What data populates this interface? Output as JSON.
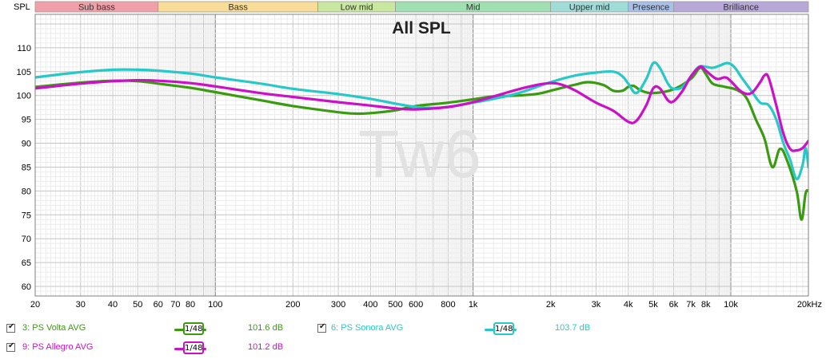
{
  "chart_data": {
    "type": "line",
    "title": "All SPL",
    "ylabel": "SPL",
    "xlabel": "",
    "x_scale": "log",
    "xlim": [
      20,
      20000
    ],
    "ylim": [
      58,
      117
    ],
    "grid": true,
    "watermark": "Tw6",
    "x_ticks": [
      {
        "v": 20,
        "l": "20"
      },
      {
        "v": 30,
        "l": "30"
      },
      {
        "v": 40,
        "l": "40"
      },
      {
        "v": 50,
        "l": "50"
      },
      {
        "v": 60,
        "l": "60"
      },
      {
        "v": 70,
        "l": "70"
      },
      {
        "v": 80,
        "l": "80"
      },
      {
        "v": 100,
        "l": "100"
      },
      {
        "v": 200,
        "l": "200"
      },
      {
        "v": 300,
        "l": "300"
      },
      {
        "v": 400,
        "l": "400"
      },
      {
        "v": 500,
        "l": "500"
      },
      {
        "v": 600,
        "l": "600"
      },
      {
        "v": 800,
        "l": "800"
      },
      {
        "v": 1000,
        "l": "1k"
      },
      {
        "v": 2000,
        "l": "2k"
      },
      {
        "v": 3000,
        "l": "3k"
      },
      {
        "v": 4000,
        "l": "4k"
      },
      {
        "v": 5000,
        "l": "5k"
      },
      {
        "v": 6000,
        "l": "6k"
      },
      {
        "v": 7000,
        "l": "7k"
      },
      {
        "v": 8000,
        "l": "8k"
      },
      {
        "v": 10000,
        "l": "10k"
      },
      {
        "v": 20000,
        "l": "20kHz"
      }
    ],
    "y_ticks": [
      60,
      65,
      70,
      75,
      80,
      85,
      90,
      95,
      100,
      105,
      110
    ],
    "bands": [
      {
        "label": "Sub bass",
        "from": 20,
        "to": 60,
        "color": "#f0a0a8"
      },
      {
        "label": "Bass",
        "from": 60,
        "to": 250,
        "color": "#f8dc98"
      },
      {
        "label": "Low mid",
        "from": 250,
        "to": 500,
        "color": "#c8e8a0"
      },
      {
        "label": "Mid",
        "from": 500,
        "to": 2000,
        "color": "#a0e0b0"
      },
      {
        "label": "Upper mid",
        "from": 2000,
        "to": 4000,
        "color": "#a0dcd8"
      },
      {
        "label": "Presence",
        "from": 4000,
        "to": 6000,
        "color": "#a8c0e8"
      },
      {
        "label": "Brilliance",
        "from": 6000,
        "to": 20000,
        "color": "#b8a8d8"
      }
    ],
    "series": [
      {
        "name": "3: PS Volta AVG",
        "color": "#3a9a10",
        "db": "101.6 dB",
        "points": [
          [
            20,
            101.8
          ],
          [
            30,
            102.7
          ],
          [
            40,
            103.1
          ],
          [
            50,
            103.0
          ],
          [
            60,
            102.5
          ],
          [
            80,
            101.6
          ],
          [
            100,
            100.7
          ],
          [
            150,
            99.0
          ],
          [
            200,
            97.8
          ],
          [
            300,
            96.5
          ],
          [
            350,
            96.2
          ],
          [
            400,
            96.3
          ],
          [
            500,
            96.9
          ],
          [
            600,
            97.8
          ],
          [
            800,
            98.5
          ],
          [
            1000,
            99.2
          ],
          [
            1200,
            99.8
          ],
          [
            1500,
            100.0
          ],
          [
            1800,
            100.4
          ],
          [
            2000,
            101.0
          ],
          [
            2500,
            102.3
          ],
          [
            2800,
            102.8
          ],
          [
            3200,
            102.2
          ],
          [
            3500,
            101.0
          ],
          [
            3800,
            101.0
          ],
          [
            4000,
            101.8
          ],
          [
            4200,
            102.0
          ],
          [
            4500,
            101.0
          ],
          [
            5000,
            100.5
          ],
          [
            6000,
            101.3
          ],
          [
            7000,
            103.5
          ],
          [
            7600,
            105.8
          ],
          [
            8000,
            104.5
          ],
          [
            8500,
            102.5
          ],
          [
            9500,
            101.8
          ],
          [
            10500,
            101.2
          ],
          [
            11500,
            99.5
          ],
          [
            12500,
            95.0
          ],
          [
            13500,
            91.0
          ],
          [
            14500,
            85.0
          ],
          [
            15500,
            88.8
          ],
          [
            16500,
            86.5
          ],
          [
            18000,
            80.0
          ],
          [
            18800,
            74.0
          ],
          [
            19500,
            79.5
          ],
          [
            20000,
            80.0
          ]
        ]
      },
      {
        "name": "6: PS Sonora AVG",
        "color": "#28c8c8",
        "db": "103.7 dB",
        "points": [
          [
            20,
            103.8
          ],
          [
            30,
            104.9
          ],
          [
            40,
            105.4
          ],
          [
            50,
            105.4
          ],
          [
            60,
            105.2
          ],
          [
            80,
            104.6
          ],
          [
            100,
            103.8
          ],
          [
            150,
            102.5
          ],
          [
            200,
            101.4
          ],
          [
            300,
            100.3
          ],
          [
            400,
            99.3
          ],
          [
            500,
            98.3
          ],
          [
            600,
            97.6
          ],
          [
            700,
            97.4
          ],
          [
            800,
            97.6
          ],
          [
            1000,
            98.5
          ],
          [
            1200,
            99.3
          ],
          [
            1500,
            100.5
          ],
          [
            2000,
            102.8
          ],
          [
            2500,
            104.2
          ],
          [
            3000,
            104.8
          ],
          [
            3500,
            105.0
          ],
          [
            3800,
            104.0
          ],
          [
            4000,
            102.5
          ],
          [
            4300,
            100.5
          ],
          [
            4700,
            103.5
          ],
          [
            5000,
            106.8
          ],
          [
            5300,
            105.8
          ],
          [
            5700,
            102.5
          ],
          [
            6000,
            101.4
          ],
          [
            6500,
            101.8
          ],
          [
            7000,
            104.0
          ],
          [
            7500,
            106.0
          ],
          [
            8000,
            106.0
          ],
          [
            8500,
            105.8
          ],
          [
            9000,
            106.2
          ],
          [
            9700,
            106.8
          ],
          [
            10300,
            106.0
          ],
          [
            11000,
            103.8
          ],
          [
            12000,
            101.0
          ],
          [
            13000,
            98.5
          ],
          [
            14000,
            98.0
          ],
          [
            15000,
            95.0
          ],
          [
            16000,
            90.0
          ],
          [
            17000,
            86.5
          ],
          [
            18000,
            82.5
          ],
          [
            19000,
            85.5
          ],
          [
            19500,
            89.0
          ],
          [
            20000,
            85.0
          ]
        ]
      },
      {
        "name": "9: PS Allegro AVG",
        "color": "#cc10c8",
        "db": "101.2 dB",
        "points": [
          [
            20,
            101.5
          ],
          [
            30,
            102.5
          ],
          [
            40,
            103.0
          ],
          [
            50,
            103.2
          ],
          [
            60,
            103.1
          ],
          [
            80,
            102.6
          ],
          [
            100,
            101.9
          ],
          [
            150,
            100.5
          ],
          [
            200,
            99.7
          ],
          [
            300,
            98.6
          ],
          [
            400,
            97.9
          ],
          [
            500,
            97.3
          ],
          [
            600,
            97.1
          ],
          [
            800,
            97.6
          ],
          [
            1000,
            98.6
          ],
          [
            1200,
            99.8
          ],
          [
            1500,
            101.3
          ],
          [
            1800,
            102.3
          ],
          [
            2000,
            102.6
          ],
          [
            2200,
            102.3
          ],
          [
            2500,
            101.0
          ],
          [
            3000,
            98.5
          ],
          [
            3500,
            96.8
          ],
          [
            4000,
            94.5
          ],
          [
            4300,
            94.7
          ],
          [
            4700,
            98.0
          ],
          [
            5000,
            101.5
          ],
          [
            5300,
            101.5
          ],
          [
            5700,
            99.0
          ],
          [
            6000,
            98.8
          ],
          [
            6500,
            101.0
          ],
          [
            7000,
            104.0
          ],
          [
            7600,
            106.0
          ],
          [
            8000,
            105.2
          ],
          [
            8800,
            103.5
          ],
          [
            9500,
            103.8
          ],
          [
            10000,
            103.0
          ],
          [
            11000,
            100.8
          ],
          [
            12000,
            100.5
          ],
          [
            13000,
            102.8
          ],
          [
            13500,
            104.2
          ],
          [
            14000,
            103.8
          ],
          [
            15000,
            98.0
          ],
          [
            16000,
            92.0
          ],
          [
            17000,
            88.8
          ],
          [
            18000,
            88.5
          ],
          [
            19000,
            89.0
          ],
          [
            20000,
            90.5
          ]
        ]
      }
    ]
  },
  "legend": [
    {
      "name": "3: PS Volta AVG",
      "color": "#3a9a10",
      "smoothing": "1/48",
      "db": "101.6 dB"
    },
    {
      "name": "6: PS Sonora AVG",
      "color": "#28c8c8",
      "smoothing": "1/48",
      "db": "103.7 dB"
    },
    {
      "name": "9: PS Allegro AVG",
      "color": "#cc10c8",
      "smoothing": "1/48",
      "db": "101.2 dB"
    }
  ]
}
